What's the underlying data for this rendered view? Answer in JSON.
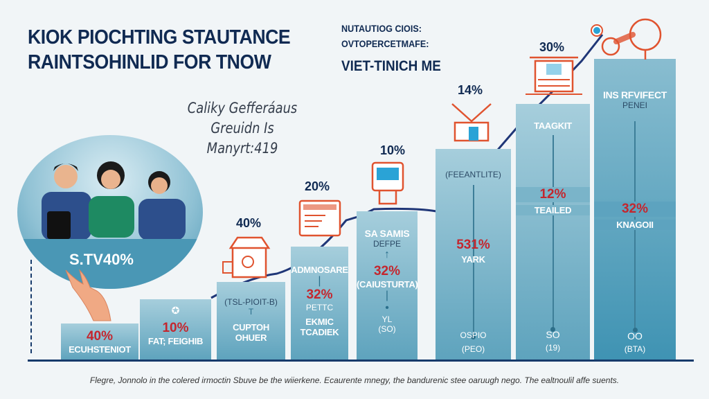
{
  "header": {
    "title_line1": "KIOK PIOCHTING STAUTANCE",
    "title_line2": "RAINTSOHINLID FOR TNOW",
    "sub_line1": "NUTAUTIOG CIOIS:",
    "sub_line2": "OVTOPERCETMAFE:",
    "sub_line3": "VIET-TINICH ME"
  },
  "quote": [
    "Caliky Gefferáaus",
    "Greuidn Is",
    "Manyrt:419"
  ],
  "circle_label": "S.TV40%",
  "bars": [
    {
      "pct": "40%",
      "label": "ECUHSTENIOT"
    },
    {
      "pct": "10%",
      "label": "FAT; FEIGHIB"
    },
    {
      "top_pct": "40%",
      "small": "(TSL-PIOIT-B)",
      "label": "CUPTOH",
      "label2": "OHUER"
    },
    {
      "top_pct": "20%",
      "head": "ADMNOSARE",
      "pct": "32%",
      "small": "PETTC",
      "label": "EKMIC",
      "label2": "TCADIEK"
    },
    {
      "top_pct": "10%",
      "head": "SA SAMIS",
      "small": "DEFPE",
      "pct": "32%",
      "label": "(CAIUSTURTA)",
      "label2": "YL",
      "label3": "(SO)"
    },
    {
      "top_pct": "14%",
      "small": "(FEEANTLITE)",
      "pct": "531%",
      "label": "YARK",
      "label2": "OSPIO",
      "label3": "(PEO)"
    },
    {
      "top_pct": "30%",
      "head": "TAAGKIT",
      "pct": "12%",
      "label": "TEAILED",
      "label2": "SO",
      "label3": "(19)"
    },
    {
      "head": "INS RFVIFECT",
      "small": "PENEI",
      "pct": "32%",
      "label": "KNAGOII",
      "label2": "OO",
      "label3": "(BTA)"
    }
  ],
  "footer": "Flegre, Jonnolo in the colered irmoctin Sbuve be the wiierkene. Ecaurente mnegy, the bandurenic stee oaruugh nego. The ealtnoulil affe suents.",
  "colors": {
    "accent_red": "#c4262e",
    "navy": "#102a52",
    "bar": "#6aaac2",
    "icon_orange": "#e0532f"
  }
}
